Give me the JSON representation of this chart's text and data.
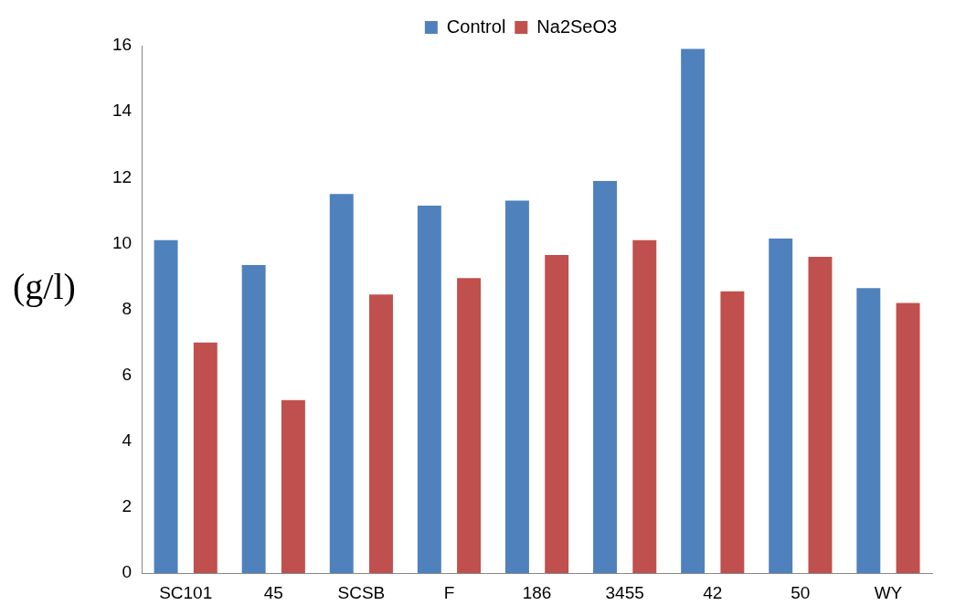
{
  "chart_data": {
    "type": "bar",
    "ylabel": "(g/l)",
    "categories": [
      "SC101",
      "45",
      "SCSB",
      "F",
      "186",
      "3455",
      "42",
      "50",
      "WY"
    ],
    "series": [
      {
        "name": "Control",
        "color": "#4f81bd",
        "values": [
          10.1,
          9.35,
          11.5,
          11.15,
          11.3,
          11.9,
          15.9,
          10.15,
          8.65
        ]
      },
      {
        "name": "Na2SeO3",
        "color": "#c0504d",
        "values": [
          7.0,
          5.25,
          8.45,
          8.95,
          9.65,
          10.1,
          8.55,
          9.6,
          8.2
        ]
      }
    ],
    "ylim": [
      0,
      16
    ],
    "yticks": [
      0,
      2,
      4,
      6,
      8,
      10,
      12,
      14,
      16
    ],
    "grid": false,
    "legend": "top"
  }
}
